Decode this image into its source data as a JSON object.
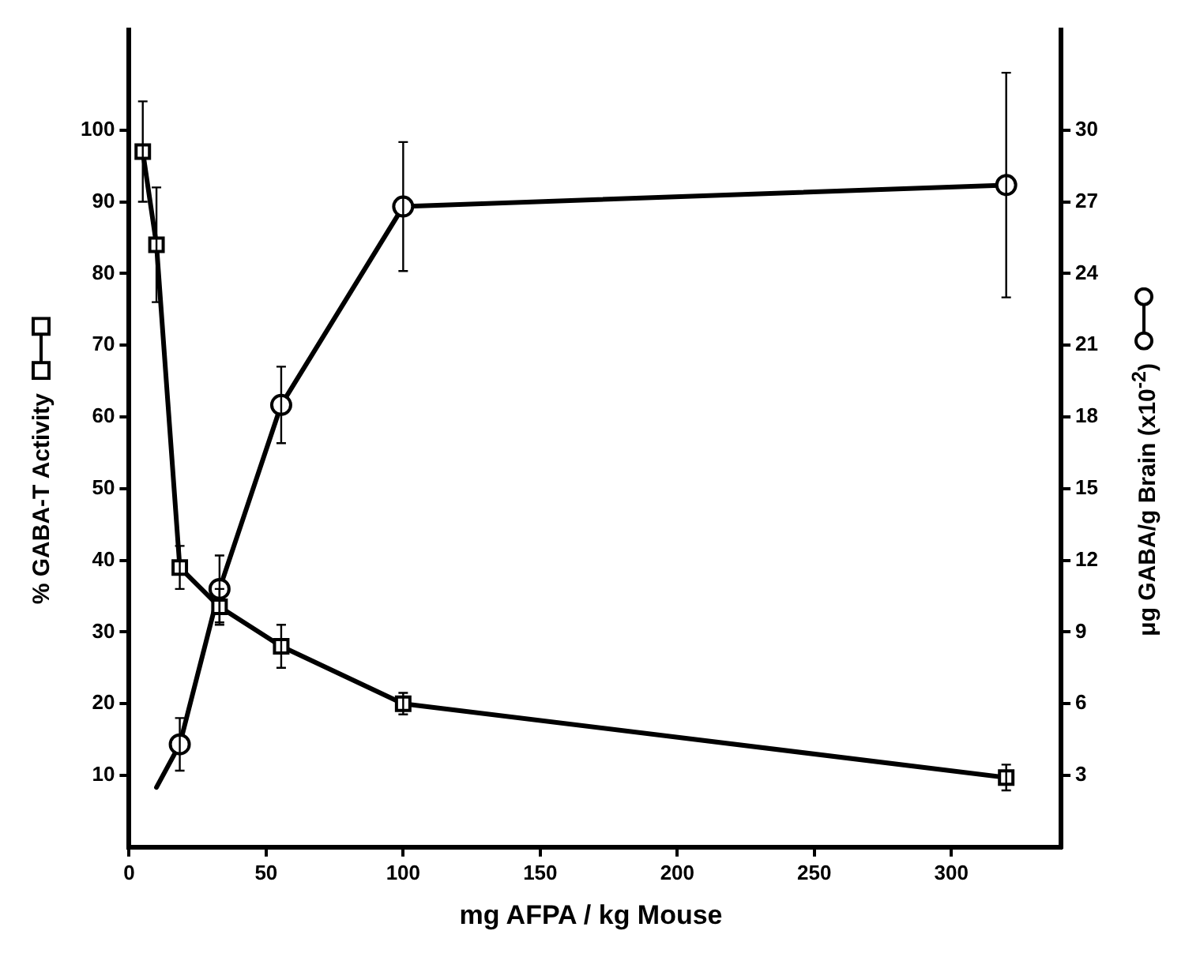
{
  "chart_data": {
    "type": "line",
    "xlabel": "mg AFPA / kg Mouse",
    "ylabel": "% GABA-T Activity",
    "y2label": "μg GABA/g Brain (x10$^{-2}$)",
    "xlim": [
      0,
      340
    ],
    "xticks": [
      0,
      50,
      100,
      150,
      200,
      250,
      300
    ],
    "ylim": [
      0,
      114
    ],
    "yticks": [
      10,
      20,
      30,
      40,
      50,
      60,
      70,
      80,
      90,
      100
    ],
    "y2lim": [
      0,
      34.2
    ],
    "y2ticks": [
      3,
      6,
      9,
      12,
      15,
      18,
      21,
      24,
      27,
      30
    ],
    "grid": false,
    "line_style": "solid",
    "series": [
      {
        "color": "#000000",
        "marker": "square",
        "axis": "y",
        "x": [
          5,
          10,
          18.5,
          33,
          55.5,
          100,
          320
        ],
        "values": [
          97,
          84,
          39,
          33.5,
          28,
          20,
          9.7
        ],
        "errors": [
          7,
          8,
          3,
          2.5,
          3,
          1.5,
          1.8
        ]
      },
      {
        "color": "#000000",
        "marker": "circle",
        "axis": "y2",
        "x": [
          18.5,
          33,
          55.5,
          100,
          320
        ],
        "values": [
          4.3,
          10.8,
          18.5,
          26.8,
          27.7
        ],
        "errors": [
          1.1,
          1.4,
          1.6,
          2.7,
          4.7
        ]
      },
      {
        "color": "#000000",
        "marker": "none",
        "axis": "y2",
        "x": [
          10,
          18.5
        ],
        "values": [
          2.5,
          4.3
        ]
      }
    ]
  }
}
